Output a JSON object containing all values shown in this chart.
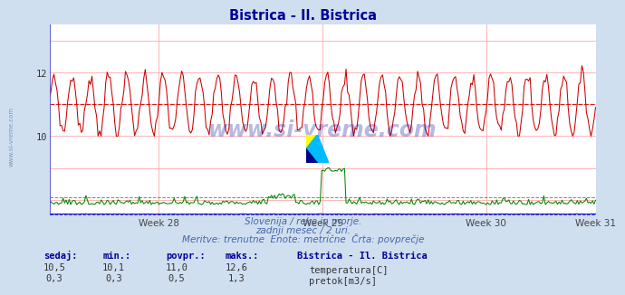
{
  "title": "Bistrica - Il. Bistrica",
  "title_color": "#000099",
  "bg_color": "#d0dff0",
  "plot_bg_color": "#ffffff",
  "grid_color": "#ffaaaa",
  "temp_color": "#cc0000",
  "temp_avg": 11.0,
  "temp_min": 10.1,
  "temp_max": 12.6,
  "flow_color": "#008800",
  "flow_avg": 0.5,
  "flow_max": 1.3,
  "height_color": "#0000cc",
  "y_min": 7.5,
  "y_max": 13.5,
  "y_ticks": [
    10,
    12
  ],
  "x_max": 360,
  "x_tick_positions": [
    72,
    180,
    288,
    360
  ],
  "x_tick_labels": [
    "Week 28",
    "Week 29",
    "Week 30",
    "Week 31"
  ],
  "subtitle1": "Slovenija / reke in morje.",
  "subtitle2": "zadnji mesec / 2 uri.",
  "subtitle3": "Meritve: trenutne  Enote: metrične  Črta: povprečje",
  "subtitle_color": "#4466aa",
  "watermark": "www.si-vreme.com",
  "watermark_color": "#000099",
  "label_color": "#000099",
  "table_headers": [
    "sedaj:",
    "min.:",
    "povpr.:",
    "maks.:"
  ],
  "station_label": "Bistrica - Il. Bistrica",
  "row1_vals": [
    "10,5",
    "10,1",
    "11,0",
    "12,6"
  ],
  "row2_vals": [
    "0,3",
    "0,3",
    "0,5",
    "1,3"
  ],
  "row1_label": "temperatura[C]",
  "row2_label": "pretok[m3/s]",
  "n_points": 360,
  "temp_period": 12.0,
  "temp_amplitude": 0.9,
  "left_margin_color": "#4444cc"
}
